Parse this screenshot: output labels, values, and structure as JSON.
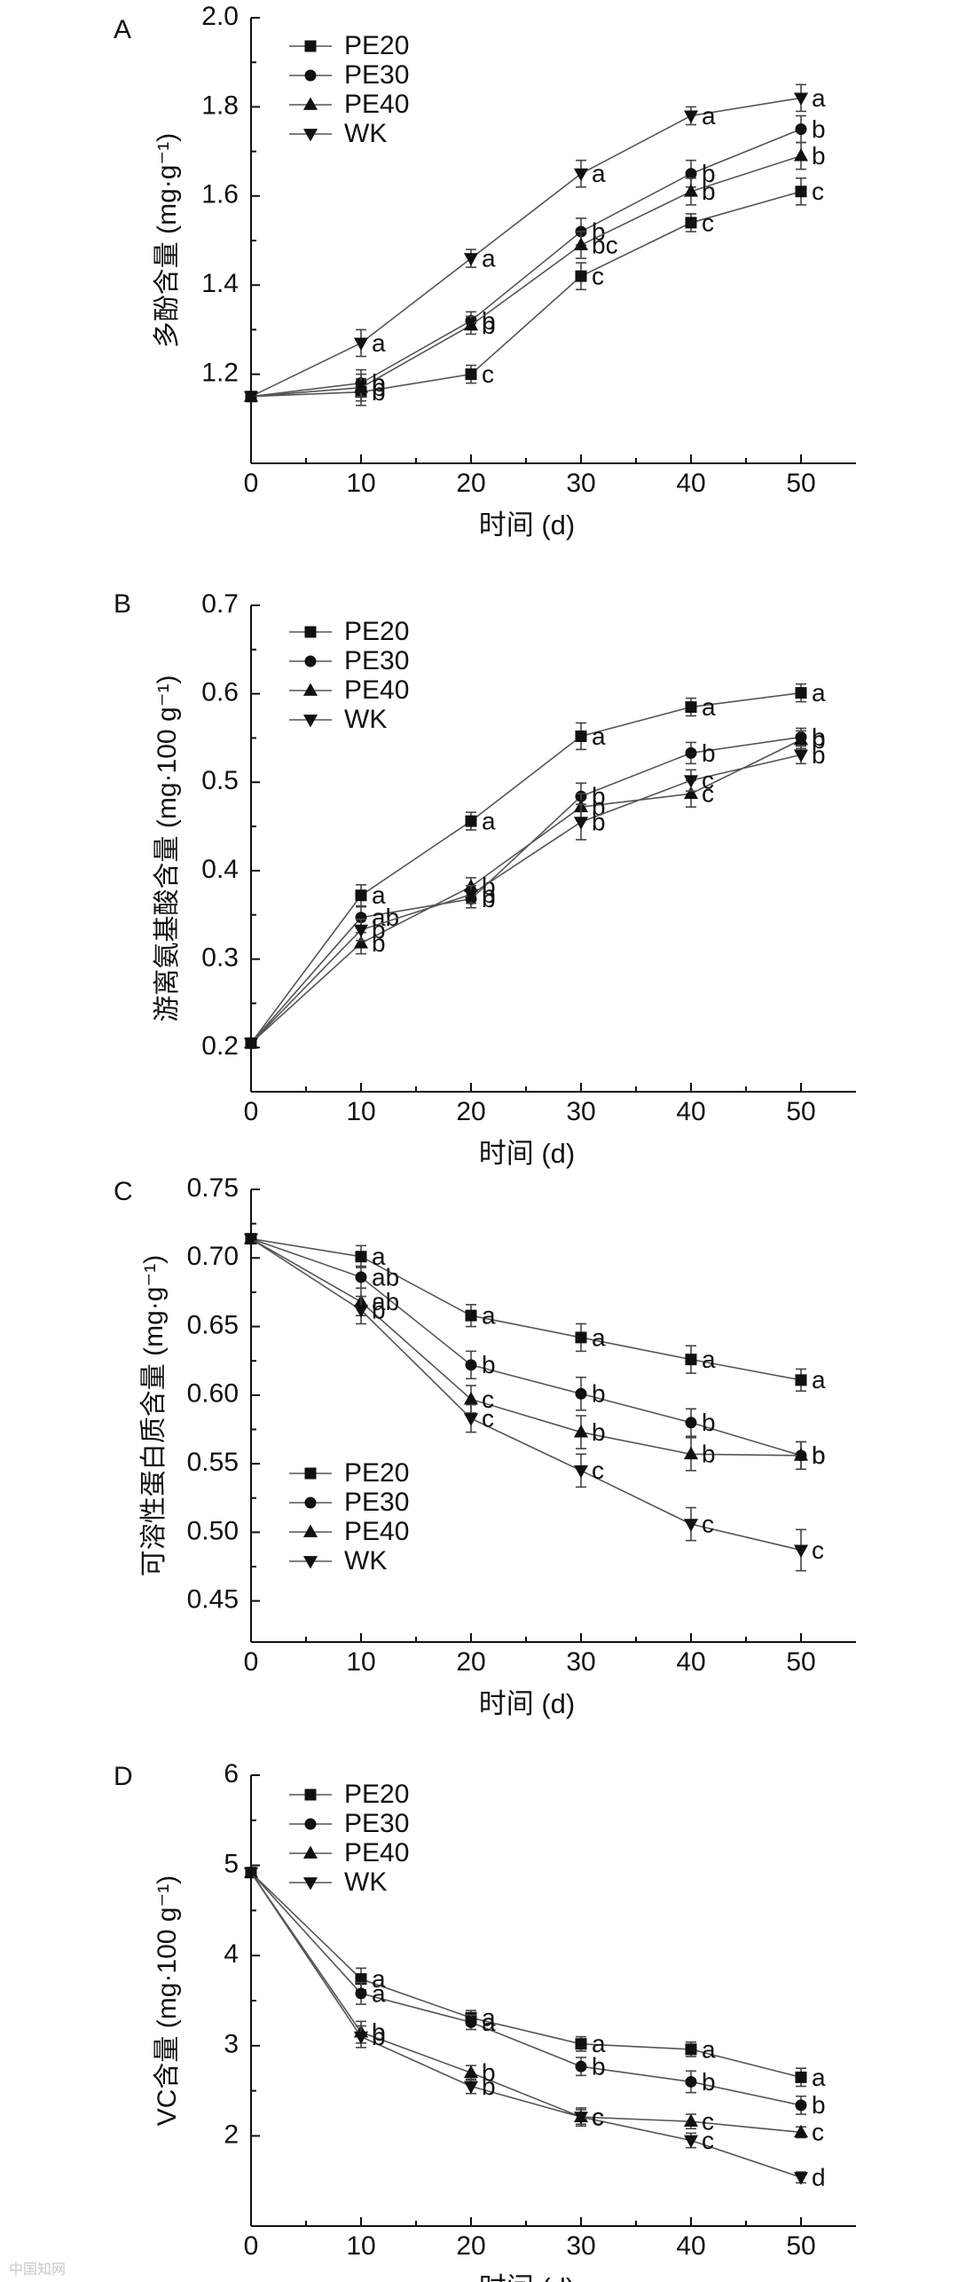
{
  "chart_data": [
    {
      "type": "line",
      "panel": "A",
      "ylabel": "多酚含量 (mg·g⁻¹)",
      "xlabel": "时间 (d)",
      "x": [
        0,
        10,
        20,
        30,
        40,
        50
      ],
      "xticks": [
        "0",
        "10",
        "20",
        "30",
        "40",
        "50"
      ],
      "ylim": [
        1.0,
        2.0
      ],
      "yticks": [
        "1.2",
        "1.4",
        "1.6",
        "1.8",
        "2.0"
      ],
      "ytick_values": [
        1.2,
        1.4,
        1.6,
        1.8,
        2.0
      ],
      "legend_position": "top-left",
      "series": [
        {
          "name": "PE20",
          "marker": "square",
          "values": [
            1.15,
            1.16,
            1.2,
            1.42,
            1.54,
            1.61
          ],
          "errors": [
            0,
            0.03,
            0.02,
            0.03,
            0.02,
            0.03
          ],
          "letters": [
            "",
            "b",
            "c",
            "c",
            "c",
            "c"
          ]
        },
        {
          "name": "PE30",
          "marker": "circle",
          "values": [
            1.15,
            1.18,
            1.32,
            1.52,
            1.65,
            1.75
          ],
          "errors": [
            0,
            0.03,
            0.02,
            0.03,
            0.03,
            0.03
          ],
          "letters": [
            "",
            "b",
            "b",
            "b",
            "b",
            "b"
          ]
        },
        {
          "name": "PE40",
          "marker": "triangle",
          "values": [
            1.15,
            1.17,
            1.31,
            1.49,
            1.61,
            1.69
          ],
          "errors": [
            0,
            0.03,
            0.02,
            0.03,
            0.03,
            0.03
          ],
          "letters": [
            "",
            "b",
            "b",
            "bc",
            "b",
            "b"
          ]
        },
        {
          "name": "WK",
          "marker": "inverted-triangle",
          "values": [
            1.15,
            1.27,
            1.46,
            1.65,
            1.78,
            1.82
          ],
          "errors": [
            0,
            0.03,
            0.02,
            0.03,
            0.02,
            0.03
          ],
          "letters": [
            "",
            "a",
            "a",
            "a",
            "a",
            "a"
          ]
        }
      ]
    },
    {
      "type": "line",
      "panel": "B",
      "ylabel": "游离氨基酸含量 (mg·100 g⁻¹)",
      "xlabel": "时间 (d)",
      "x": [
        0,
        10,
        20,
        30,
        40,
        50
      ],
      "xticks": [
        "0",
        "10",
        "20",
        "30",
        "40",
        "50"
      ],
      "ylim": [
        0.15,
        0.7
      ],
      "yticks": [
        "0.2",
        "0.3",
        "0.4",
        "0.5",
        "0.6",
        "0.7"
      ],
      "ytick_values": [
        0.2,
        0.3,
        0.4,
        0.5,
        0.6,
        0.7
      ],
      "legend_position": "top-left",
      "series": [
        {
          "name": "PE20",
          "marker": "square",
          "values": [
            0.205,
            0.372,
            0.456,
            0.552,
            0.585,
            0.601
          ],
          "errors": [
            0,
            0.012,
            0.01,
            0.015,
            0.01,
            0.01
          ],
          "letters": [
            "",
            "a",
            "a",
            "a",
            "a",
            "a"
          ]
        },
        {
          "name": "PE30",
          "marker": "circle",
          "values": [
            0.205,
            0.347,
            0.368,
            0.484,
            0.533,
            0.551
          ],
          "errors": [
            0,
            0.012,
            0.01,
            0.015,
            0.012,
            0.01
          ],
          "letters": [
            "",
            "ab",
            "b",
            "b",
            "b",
            "b"
          ]
        },
        {
          "name": "PE40",
          "marker": "triangle",
          "values": [
            0.205,
            0.318,
            0.382,
            0.472,
            0.487,
            0.548
          ],
          "errors": [
            0,
            0.012,
            0.01,
            0.015,
            0.015,
            0.01
          ],
          "letters": [
            "",
            "b",
            "b",
            "b",
            "c",
            "b"
          ]
        },
        {
          "name": "WK",
          "marker": "inverted-triangle",
          "values": [
            0.205,
            0.333,
            0.373,
            0.455,
            0.502,
            0.531
          ],
          "errors": [
            0,
            0.012,
            0.01,
            0.02,
            0.012,
            0.01
          ],
          "letters": [
            "",
            "b",
            "b",
            "b",
            "c",
            "b"
          ]
        }
      ]
    },
    {
      "type": "line",
      "panel": "C",
      "ylabel": "可溶性蛋白质含量 (mg·g⁻¹)",
      "xlabel": "时间 (d)",
      "x": [
        0,
        10,
        20,
        30,
        40,
        50
      ],
      "xticks": [
        "0",
        "10",
        "20",
        "30",
        "40",
        "50"
      ],
      "ylim": [
        0.42,
        0.75
      ],
      "yticks": [
        "0.45",
        "0.50",
        "0.55",
        "0.60",
        "0.65",
        "0.70",
        "0.75"
      ],
      "ytick_values": [
        0.45,
        0.5,
        0.55,
        0.6,
        0.65,
        0.7,
        0.75
      ],
      "legend_position": "bottom-left",
      "series": [
        {
          "name": "PE20",
          "marker": "square",
          "values": [
            0.714,
            0.701,
            0.658,
            0.642,
            0.626,
            0.611
          ],
          "errors": [
            0,
            0.008,
            0.008,
            0.01,
            0.01,
            0.008
          ],
          "letters": [
            "",
            "a",
            "a",
            "a",
            "a",
            "a"
          ]
        },
        {
          "name": "PE30",
          "marker": "circle",
          "values": [
            0.714,
            0.686,
            0.622,
            0.601,
            0.58,
            0.556
          ],
          "errors": [
            0,
            0.008,
            0.01,
            0.012,
            0.01,
            0.01
          ],
          "letters": [
            "",
            "ab",
            "b",
            "b",
            "b",
            "b"
          ]
        },
        {
          "name": "PE40",
          "marker": "triangle",
          "values": [
            0.714,
            0.668,
            0.597,
            0.573,
            0.557,
            0.556
          ],
          "errors": [
            0,
            0.01,
            0.01,
            0.012,
            0.012,
            0.01
          ],
          "letters": [
            "",
            "ab",
            "c",
            "b",
            "b",
            "b"
          ]
        },
        {
          "name": "WK",
          "marker": "inverted-triangle",
          "values": [
            0.714,
            0.662,
            0.583,
            0.545,
            0.506,
            0.487
          ],
          "errors": [
            0,
            0.01,
            0.01,
            0.012,
            0.012,
            0.015
          ],
          "letters": [
            "",
            "b",
            "c",
            "c",
            "c",
            "c"
          ]
        }
      ]
    },
    {
      "type": "line",
      "panel": "D",
      "ylabel": "VC含量 (mg·100 g⁻¹)",
      "xlabel": "时间 (d)",
      "x": [
        0,
        10,
        20,
        30,
        40,
        50
      ],
      "xticks": [
        "0",
        "10",
        "20",
        "30",
        "40",
        "50"
      ],
      "ylim": [
        1.0,
        6.0
      ],
      "yticks": [
        "2",
        "3",
        "4",
        "5",
        "6"
      ],
      "ytick_values": [
        2,
        3,
        4,
        5,
        6
      ],
      "legend_position": "top-left",
      "series": [
        {
          "name": "PE20",
          "marker": "square",
          "values": [
            4.92,
            3.74,
            3.31,
            3.02,
            2.96,
            2.65
          ],
          "errors": [
            0,
            0.12,
            0.08,
            0.08,
            0.08,
            0.1
          ],
          "letters": [
            "",
            "a",
            "a",
            "a",
            "a",
            "a"
          ]
        },
        {
          "name": "PE30",
          "marker": "circle",
          "values": [
            4.92,
            3.58,
            3.26,
            2.77,
            2.6,
            2.34
          ],
          "errors": [
            0,
            0.12,
            0.08,
            0.1,
            0.12,
            0.1
          ],
          "letters": [
            "",
            "a",
            "a",
            "b",
            "b",
            "b"
          ]
        },
        {
          "name": "PE40",
          "marker": "triangle",
          "values": [
            4.92,
            3.15,
            2.7,
            2.21,
            2.16,
            2.04
          ],
          "errors": [
            0,
            0.12,
            0.08,
            0.08,
            0.08,
            0.06
          ],
          "letters": [
            "",
            "b",
            "b",
            "c",
            "c",
            "c"
          ]
        },
        {
          "name": "WK",
          "marker": "inverted-triangle",
          "values": [
            4.92,
            3.1,
            2.55,
            2.21,
            1.95,
            1.54
          ],
          "errors": [
            0,
            0.12,
            0.08,
            0.1,
            0.08,
            0.06
          ],
          "letters": [
            "",
            "b",
            "b",
            "c",
            "c",
            "d"
          ]
        }
      ]
    }
  ],
  "watermark": "中国知网"
}
